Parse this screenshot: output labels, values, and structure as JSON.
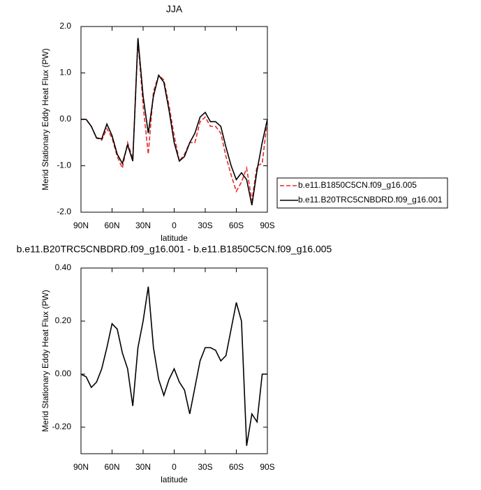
{
  "chart_data": [
    {
      "type": "line",
      "title": "JJA",
      "xlabel": "latitude",
      "ylabel": "Merid Stationary Eddy Heat Flux (PW)",
      "x": [
        90,
        85,
        80,
        75,
        70,
        65,
        60,
        55,
        50,
        45,
        40,
        35,
        30,
        25,
        20,
        15,
        10,
        5,
        0,
        -5,
        -10,
        -15,
        -20,
        -25,
        -30,
        -35,
        -40,
        -45,
        -50,
        -55,
        -60,
        -65,
        -70,
        -75,
        -80,
        -85,
        -90
      ],
      "series": [
        {
          "name": "b.e11.B1850C5CN.f09_g16.005",
          "color": "#e8292a",
          "dash": "dashed",
          "values": [
            0,
            0,
            -0.15,
            -0.4,
            -0.45,
            -0.2,
            -0.4,
            -0.8,
            -1.05,
            -0.5,
            -0.85,
            1.7,
            0.3,
            -0.75,
            0.6,
            0.95,
            0.85,
            0.3,
            -0.35,
            -0.9,
            -0.75,
            -0.5,
            -0.5,
            -0.05,
            0.05,
            -0.15,
            -0.15,
            -0.3,
            -0.8,
            -1.2,
            -1.55,
            -1.35,
            -1.05,
            -1.75,
            -1.0,
            -0.95,
            0
          ]
        },
        {
          "name": "b.e11.B20TRC5CNBDRD.f09_g16.001",
          "color": "#000000",
          "dash": "solid",
          "values": [
            0,
            0,
            -0.15,
            -0.4,
            -0.42,
            -0.1,
            -0.35,
            -0.75,
            -0.95,
            -0.55,
            -0.9,
            1.75,
            0.5,
            -0.3,
            0.5,
            0.95,
            0.8,
            0.2,
            -0.5,
            -0.9,
            -0.8,
            -0.5,
            -0.3,
            0.05,
            0.15,
            -0.05,
            -0.05,
            -0.15,
            -0.6,
            -1.0,
            -1.3,
            -1.15,
            -1.3,
            -1.85,
            -1.1,
            -0.5,
            0
          ]
        }
      ],
      "xlim": [
        90,
        -90
      ],
      "xticks": [
        {
          "value": 90,
          "label": "90N"
        },
        {
          "value": 60,
          "label": "60N"
        },
        {
          "value": 30,
          "label": "30N"
        },
        0,
        {
          "value": -30,
          "label": "30S"
        },
        {
          "value": -60,
          "label": "60S"
        },
        {
          "value": -90,
          "label": "90S"
        }
      ],
      "ylim": [
        -2,
        2
      ],
      "yticks": [
        {
          "value": 2,
          "label": "2.0"
        },
        {
          "value": 1,
          "label": "1.0"
        },
        {
          "value": 0,
          "label": "0.0"
        },
        {
          "value": -1,
          "label": "-1.0"
        },
        {
          "value": -2,
          "label": "-2.0"
        }
      ],
      "legend": "right"
    },
    {
      "type": "line",
      "title": "b.e11.B20TRC5CNBDRD.f09_g16.001 - b.e11.B1850C5CN.f09_g16.005",
      "xlabel": "latitude",
      "ylabel": "Merid Stationary Eddy Heat Flux (PW)",
      "x": [
        90,
        85,
        80,
        75,
        70,
        65,
        60,
        55,
        50,
        45,
        40,
        35,
        30,
        25,
        20,
        15,
        10,
        5,
        0,
        -5,
        -10,
        -15,
        -20,
        -25,
        -30,
        -35,
        -40,
        -45,
        -50,
        -55,
        -60,
        -65,
        -70,
        -75,
        -80,
        -85,
        -90
      ],
      "series": [
        {
          "color": "#000000",
          "dash": "solid",
          "values": [
            0,
            -0.01,
            -0.05,
            -0.03,
            0.02,
            0.1,
            0.19,
            0.17,
            0.08,
            0.02,
            -0.12,
            0.1,
            0.2,
            0.33,
            0.1,
            -0.02,
            -0.08,
            -0.02,
            0.02,
            -0.03,
            -0.06,
            -0.15,
            -0.05,
            0.05,
            0.1,
            0.1,
            0.09,
            0.05,
            0.07,
            0.17,
            0.27,
            0.2,
            -0.27,
            -0.15,
            -0.18,
            0,
            0
          ]
        }
      ],
      "xlim": [
        90,
        -90
      ],
      "xticks": [
        {
          "value": 90,
          "label": "90N"
        },
        {
          "value": 60,
          "label": "60N"
        },
        {
          "value": 30,
          "label": "30N"
        },
        0,
        {
          "value": -30,
          "label": "30S"
        },
        {
          "value": -60,
          "label": "60S"
        },
        {
          "value": -90,
          "label": "90S"
        }
      ],
      "ylim": [
        -0.3,
        0.4
      ],
      "yticks": [
        {
          "value": 0.4,
          "label": "0.40"
        },
        {
          "value": 0.2,
          "label": "0.20"
        },
        {
          "value": 0,
          "label": "0.00"
        },
        {
          "value": -0.2,
          "label": "-0.20"
        }
      ]
    }
  ]
}
